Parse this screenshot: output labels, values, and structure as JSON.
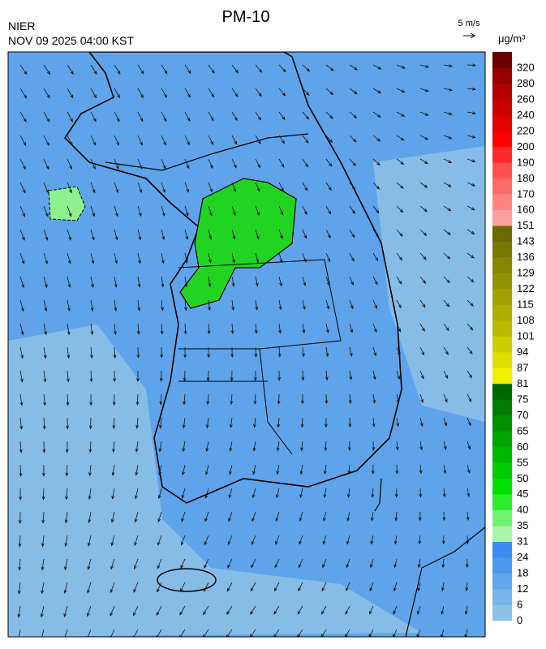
{
  "header": {
    "title": "PM-10",
    "agency": "NIER",
    "timestamp": "NOV 09 2025 04:00 KST",
    "wind_scale": "5 m/s"
  },
  "colorbar": {
    "unit": "μg/m³",
    "ticks": [
      0,
      6,
      12,
      18,
      24,
      31,
      35,
      40,
      45,
      50,
      55,
      60,
      65,
      70,
      75,
      81,
      87,
      94,
      101,
      108,
      115,
      122,
      129,
      136,
      143,
      151,
      160,
      170,
      180,
      190,
      200,
      220,
      240,
      260,
      280,
      320
    ],
    "colors": [
      "#8fc3e6",
      "#79b4ea",
      "#62a6ec",
      "#4b98ee",
      "#3a8cf0",
      "#a8f5a8",
      "#72f272",
      "#2cee2c",
      "#00e000",
      "#00cc00",
      "#00b800",
      "#00a400",
      "#009000",
      "#007c00",
      "#006800",
      "#f0f000",
      "#dede00",
      "#cccc00",
      "#baba00",
      "#adad00",
      "#a0a000",
      "#939300",
      "#868600",
      "#787800",
      "#6a6a00",
      "#ff9e9e",
      "#ff8585",
      "#ff6b6b",
      "#ff5050",
      "#ff2a2a",
      "#ff0000",
      "#e00000",
      "#c80000",
      "#b00000",
      "#960000",
      "#6a0000"
    ]
  }
}
